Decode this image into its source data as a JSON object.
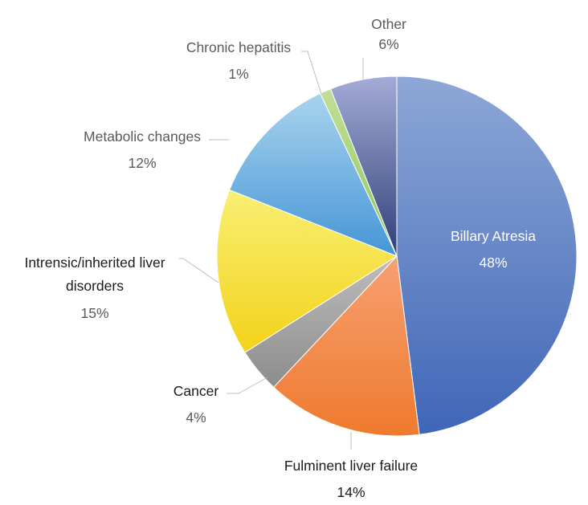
{
  "chart_data": {
    "type": "pie",
    "title": "",
    "legend": "none",
    "slices": [
      {
        "label": "Billary Atresia",
        "value": 48,
        "pct_label": "48%",
        "color_top": "#8ea7d6",
        "color_bottom": "#3f66b7",
        "label_color": "#ffffff",
        "pct_color": "#ffffff"
      },
      {
        "label": "Fulminent liver failure",
        "value": 14,
        "pct_label": "14%",
        "color_top": "#f7a072",
        "color_bottom": "#ef7a2e",
        "label_color": "#1a1a1a",
        "pct_color": "#1a1a1a"
      },
      {
        "label": "Cancer",
        "value": 4,
        "pct_label": "4%",
        "color_top": "#bdbdbd",
        "color_bottom": "#8c8c8c",
        "label_color": "#1a1a1a",
        "pct_color": "#5a5a5a"
      },
      {
        "label": "Intrensic/inherited liver disorders",
        "label_lines": [
          "Intrensic/inherited liver",
          "disorders"
        ],
        "value": 15,
        "pct_label": "15%",
        "color_top": "#f8ef73",
        "color_bottom": "#f3d21a",
        "label_color": "#1a1a1a",
        "pct_color": "#5a5a5a"
      },
      {
        "label": "Metabolic changes",
        "value": 12,
        "pct_label": "12%",
        "color_top": "#a9d3ee",
        "color_bottom": "#4596d6",
        "label_color": "#5a5a5a",
        "pct_color": "#5a5a5a"
      },
      {
        "label": "Chronic hepatitis",
        "value": 1,
        "pct_label": "1%",
        "color_top": "#c2df98",
        "color_bottom": "#8fc65a",
        "label_color": "#5a5a5a",
        "pct_color": "#5a5a5a"
      },
      {
        "label": "Other",
        "value": 6,
        "pct_label": "6%",
        "color_top": "#a3acd6",
        "color_bottom": "#2f3f78",
        "label_color": "#5a5a5a",
        "pct_color": "#5a5a5a"
      }
    ]
  }
}
